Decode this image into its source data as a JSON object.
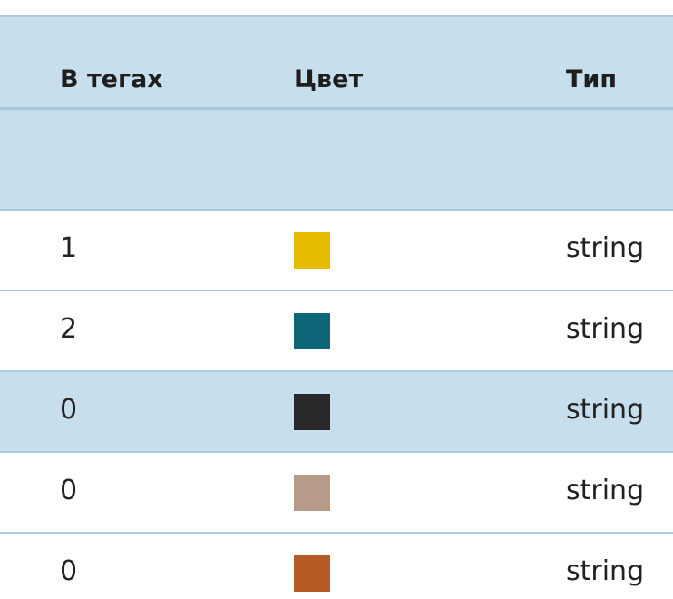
{
  "table": {
    "headers": {
      "tags": "В тегах",
      "color": "Цвет",
      "type": "Тип"
    },
    "rows": [
      {
        "tags": "1",
        "color": "#e5bc00",
        "type": "string",
        "selected": false
      },
      {
        "tags": "2",
        "color": "#0d6577",
        "type": "string",
        "selected": false
      },
      {
        "tags": "0",
        "color": "#282828",
        "type": "string",
        "selected": true
      },
      {
        "tags": "0",
        "color": "#b59b88",
        "type": "string",
        "selected": false
      },
      {
        "tags": "0",
        "color": "#b65a26",
        "type": "string",
        "selected": false
      }
    ]
  }
}
